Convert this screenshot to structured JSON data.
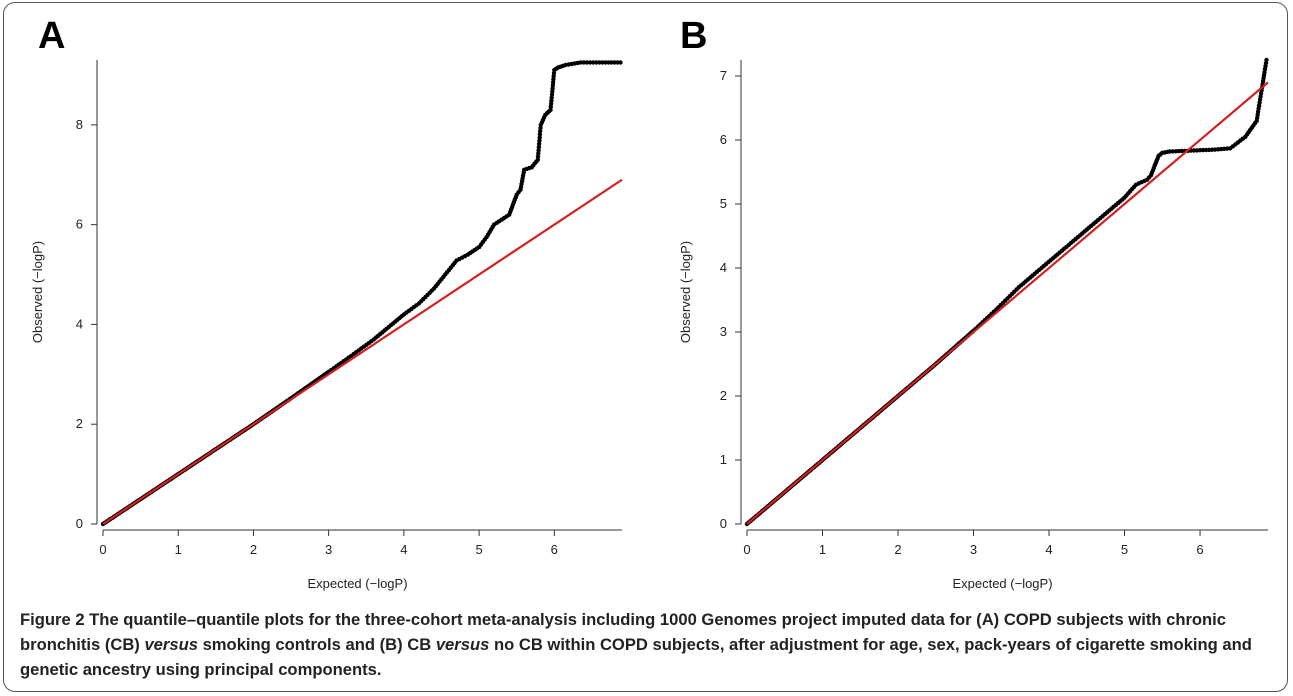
{
  "caption": {
    "label": "Figure 2",
    "part1": "The quantile–quantile plots for the three-cohort meta-analysis including 1000 Genomes project imputed data for (A) COPD subjects with chronic bronchitis (CB) ",
    "italic1": "versus",
    "part2": " smoking controls and (B) CB ",
    "italic2": "versus",
    "part3": " no CB within COPD subjects, after adjustment for age, sex, pack-years of cigarette smoking and genetic ancestry using principal components."
  },
  "colors": {
    "points": "#000000",
    "reference_line": "#d42020",
    "axis": "#333333"
  },
  "chart_data": [
    {
      "type": "scatter",
      "panel_label": "A",
      "xlabel": "Expected (−logP)",
      "ylabel": "Observed (−logP)",
      "xlim": [
        0,
        6.9
      ],
      "ylim": [
        0,
        9.3
      ],
      "xticks": [
        0,
        1,
        2,
        3,
        4,
        5,
        6
      ],
      "yticks": [
        0,
        2,
        4,
        6,
        8
      ],
      "reference_line": [
        [
          0,
          0
        ],
        [
          6.9,
          6.9
        ]
      ],
      "grid": false,
      "points": [
        [
          0.0,
          0.0
        ],
        [
          0.5,
          0.5
        ],
        [
          1.0,
          1.0
        ],
        [
          1.5,
          1.5
        ],
        [
          2.0,
          2.0
        ],
        [
          2.5,
          2.52
        ],
        [
          3.0,
          3.05
        ],
        [
          3.3,
          3.37
        ],
        [
          3.6,
          3.7
        ],
        [
          3.8,
          3.95
        ],
        [
          4.0,
          4.2
        ],
        [
          4.2,
          4.42
        ],
        [
          4.4,
          4.72
        ],
        [
          4.55,
          5.0
        ],
        [
          4.7,
          5.28
        ],
        [
          4.85,
          5.4
        ],
        [
          5.0,
          5.55
        ],
        [
          5.1,
          5.75
        ],
        [
          5.2,
          6.0
        ],
        [
          5.3,
          6.1
        ],
        [
          5.4,
          6.2
        ],
        [
          5.45,
          6.4
        ],
        [
          5.5,
          6.6
        ],
        [
          5.55,
          6.7
        ],
        [
          5.6,
          7.1
        ],
        [
          5.7,
          7.15
        ],
        [
          5.78,
          7.3
        ],
        [
          5.82,
          8.0
        ],
        [
          5.88,
          8.2
        ],
        [
          5.95,
          8.3
        ],
        [
          6.0,
          9.1
        ],
        [
          6.05,
          9.15
        ],
        [
          6.15,
          9.2
        ],
        [
          6.35,
          9.25
        ],
        [
          6.6,
          9.25
        ],
        [
          6.88,
          9.25
        ]
      ]
    },
    {
      "type": "scatter",
      "panel_label": "B",
      "xlabel": "Expected (−logP)",
      "ylabel": "Observed (−logP)",
      "xlim": [
        0,
        6.9
      ],
      "ylim": [
        0,
        7.25
      ],
      "xticks": [
        0,
        1,
        2,
        3,
        4,
        5,
        6
      ],
      "yticks": [
        0,
        1,
        2,
        3,
        4,
        5,
        6,
        7
      ],
      "reference_line": [
        [
          0,
          0
        ],
        [
          6.9,
          6.9
        ]
      ],
      "grid": false,
      "points": [
        [
          0.0,
          0.0
        ],
        [
          0.5,
          0.5
        ],
        [
          1.0,
          1.0
        ],
        [
          1.5,
          1.5
        ],
        [
          2.0,
          2.0
        ],
        [
          2.5,
          2.5
        ],
        [
          3.0,
          3.02
        ],
        [
          3.3,
          3.35
        ],
        [
          3.6,
          3.7
        ],
        [
          3.9,
          4.0
        ],
        [
          4.2,
          4.3
        ],
        [
          4.5,
          4.6
        ],
        [
          4.8,
          4.9
        ],
        [
          5.0,
          5.1
        ],
        [
          5.15,
          5.3
        ],
        [
          5.3,
          5.38
        ],
        [
          5.35,
          5.45
        ],
        [
          5.4,
          5.6
        ],
        [
          5.45,
          5.75
        ],
        [
          5.5,
          5.8
        ],
        [
          5.6,
          5.82
        ],
        [
          5.8,
          5.83
        ],
        [
          6.0,
          5.84
        ],
        [
          6.2,
          5.85
        ],
        [
          6.4,
          5.87
        ],
        [
          6.6,
          6.05
        ],
        [
          6.75,
          6.3
        ],
        [
          6.88,
          7.25
        ]
      ]
    }
  ]
}
